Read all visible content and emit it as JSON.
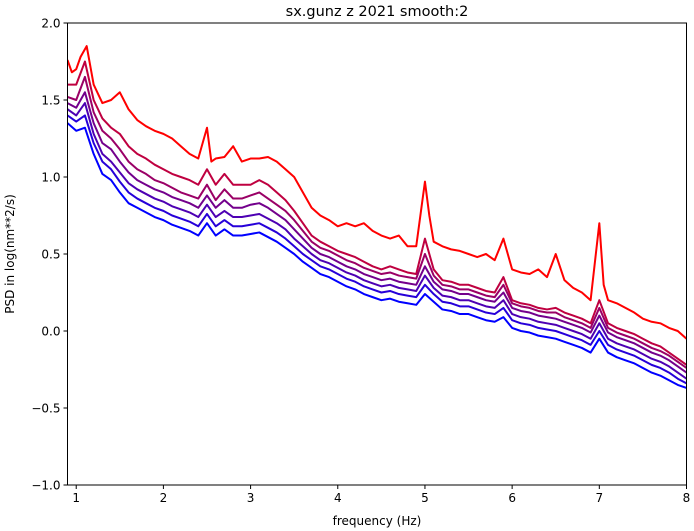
{
  "chart_data": {
    "type": "line",
    "title": "sx.gunz z 2021 smooth:2",
    "xlabel": "frequency (Hz)",
    "ylabel": "PSD in log(nm**2/s)",
    "xlim": [
      0.9,
      8.0
    ],
    "ylim": [
      -1.0,
      2.0
    ],
    "xticks": [
      1,
      2,
      3,
      4,
      5,
      6,
      7,
      8
    ],
    "yticks": [
      -1.0,
      -0.5,
      0.0,
      0.5,
      1.0,
      1.5,
      2.0
    ],
    "xtick_labels": [
      "1",
      "2",
      "3",
      "4",
      "5",
      "6",
      "7",
      "8"
    ],
    "ytick_labels": [
      "−1.0",
      "−0.5",
      "0.0",
      "0.5",
      "1.0",
      "1.5",
      "2.0"
    ],
    "grid": false,
    "legend": "none",
    "series": [
      {
        "color": "#ff0000",
        "x": [
          0.9,
          0.95,
          1.0,
          1.05,
          1.12,
          1.2,
          1.3,
          1.4,
          1.5,
          1.6,
          1.7,
          1.8,
          1.9,
          2.0,
          2.1,
          2.2,
          2.3,
          2.4,
          2.5,
          2.55,
          2.6,
          2.7,
          2.8,
          2.9,
          3.0,
          3.1,
          3.2,
          3.3,
          3.4,
          3.5,
          3.6,
          3.7,
          3.8,
          3.9,
          4.0,
          4.1,
          4.2,
          4.3,
          4.4,
          4.5,
          4.6,
          4.7,
          4.8,
          4.9,
          5.0,
          5.05,
          5.1,
          5.2,
          5.3,
          5.4,
          5.5,
          5.6,
          5.7,
          5.8,
          5.9,
          6.0,
          6.1,
          6.2,
          6.3,
          6.4,
          6.5,
          6.6,
          6.7,
          6.8,
          6.9,
          7.0,
          7.05,
          7.1,
          7.2,
          7.3,
          7.4,
          7.5,
          7.6,
          7.7,
          7.8,
          7.9,
          8.0
        ],
        "y": [
          1.76,
          1.68,
          1.7,
          1.78,
          1.85,
          1.6,
          1.48,
          1.5,
          1.55,
          1.44,
          1.37,
          1.33,
          1.3,
          1.28,
          1.25,
          1.2,
          1.15,
          1.12,
          1.32,
          1.1,
          1.12,
          1.13,
          1.2,
          1.1,
          1.12,
          1.12,
          1.13,
          1.1,
          1.05,
          1.0,
          0.9,
          0.8,
          0.75,
          0.72,
          0.68,
          0.7,
          0.68,
          0.7,
          0.65,
          0.62,
          0.6,
          0.62,
          0.55,
          0.55,
          0.97,
          0.75,
          0.58,
          0.55,
          0.53,
          0.52,
          0.5,
          0.48,
          0.5,
          0.46,
          0.6,
          0.4,
          0.38,
          0.37,
          0.4,
          0.35,
          0.5,
          0.33,
          0.28,
          0.25,
          0.2,
          0.7,
          0.3,
          0.2,
          0.18,
          0.15,
          0.12,
          0.08,
          0.06,
          0.05,
          0.02,
          0.0,
          -0.05
        ]
      },
      {
        "color": "#bf0040",
        "x": [
          0.9,
          1.0,
          1.1,
          1.2,
          1.3,
          1.4,
          1.5,
          1.6,
          1.7,
          1.8,
          1.9,
          2.0,
          2.1,
          2.2,
          2.3,
          2.4,
          2.5,
          2.6,
          2.7,
          2.8,
          2.9,
          3.0,
          3.1,
          3.2,
          3.3,
          3.4,
          3.5,
          3.6,
          3.7,
          3.8,
          3.9,
          4.0,
          4.1,
          4.2,
          4.3,
          4.4,
          4.5,
          4.6,
          4.7,
          4.8,
          4.9,
          5.0,
          5.1,
          5.2,
          5.3,
          5.4,
          5.5,
          5.6,
          5.7,
          5.8,
          5.9,
          6.0,
          6.1,
          6.2,
          6.3,
          6.4,
          6.5,
          6.6,
          6.7,
          6.8,
          6.9,
          7.0,
          7.1,
          7.2,
          7.3,
          7.4,
          7.5,
          7.6,
          7.7,
          7.8,
          7.9,
          8.0
        ],
        "y": [
          1.6,
          1.6,
          1.75,
          1.5,
          1.38,
          1.32,
          1.28,
          1.2,
          1.15,
          1.12,
          1.08,
          1.05,
          1.02,
          1.0,
          0.98,
          0.95,
          1.05,
          0.95,
          1.02,
          0.95,
          0.95,
          0.95,
          0.98,
          0.95,
          0.9,
          0.85,
          0.78,
          0.7,
          0.62,
          0.58,
          0.55,
          0.52,
          0.5,
          0.48,
          0.45,
          0.42,
          0.4,
          0.42,
          0.4,
          0.38,
          0.37,
          0.6,
          0.4,
          0.33,
          0.32,
          0.3,
          0.3,
          0.28,
          0.26,
          0.25,
          0.35,
          0.2,
          0.18,
          0.17,
          0.15,
          0.14,
          0.15,
          0.12,
          0.1,
          0.08,
          0.05,
          0.2,
          0.05,
          0.02,
          0.0,
          -0.02,
          -0.05,
          -0.08,
          -0.1,
          -0.14,
          -0.18,
          -0.22
        ]
      },
      {
        "color": "#9a0066",
        "x": [
          0.9,
          1.0,
          1.1,
          1.2,
          1.3,
          1.4,
          1.5,
          1.6,
          1.7,
          1.8,
          1.9,
          2.0,
          2.1,
          2.2,
          2.3,
          2.4,
          2.5,
          2.6,
          2.7,
          2.8,
          2.9,
          3.0,
          3.1,
          3.2,
          3.3,
          3.4,
          3.5,
          3.6,
          3.7,
          3.8,
          3.9,
          4.0,
          4.1,
          4.2,
          4.3,
          4.4,
          4.5,
          4.6,
          4.7,
          4.8,
          4.9,
          5.0,
          5.1,
          5.2,
          5.3,
          5.4,
          5.5,
          5.6,
          5.7,
          5.8,
          5.9,
          6.0,
          6.1,
          6.2,
          6.3,
          6.4,
          6.5,
          6.6,
          6.7,
          6.8,
          6.9,
          7.0,
          7.1,
          7.2,
          7.3,
          7.4,
          7.5,
          7.6,
          7.7,
          7.8,
          7.9,
          8.0
        ],
        "y": [
          1.52,
          1.5,
          1.65,
          1.42,
          1.3,
          1.25,
          1.18,
          1.1,
          1.05,
          1.02,
          0.98,
          0.96,
          0.93,
          0.9,
          0.88,
          0.86,
          0.95,
          0.85,
          0.92,
          0.86,
          0.86,
          0.88,
          0.9,
          0.86,
          0.82,
          0.78,
          0.72,
          0.65,
          0.58,
          0.54,
          0.52,
          0.49,
          0.46,
          0.44,
          0.41,
          0.39,
          0.37,
          0.38,
          0.36,
          0.35,
          0.34,
          0.5,
          0.36,
          0.3,
          0.29,
          0.27,
          0.27,
          0.25,
          0.23,
          0.22,
          0.3,
          0.18,
          0.16,
          0.15,
          0.13,
          0.12,
          0.12,
          0.09,
          0.07,
          0.05,
          0.02,
          0.15,
          0.02,
          -0.01,
          -0.03,
          -0.05,
          -0.08,
          -0.11,
          -0.13,
          -0.16,
          -0.2,
          -0.24
        ]
      },
      {
        "color": "#73008c",
        "x": [
          0.9,
          1.0,
          1.1,
          1.2,
          1.3,
          1.4,
          1.5,
          1.6,
          1.7,
          1.8,
          1.9,
          2.0,
          2.1,
          2.2,
          2.3,
          2.4,
          2.5,
          2.6,
          2.7,
          2.8,
          2.9,
          3.0,
          3.1,
          3.2,
          3.3,
          3.4,
          3.5,
          3.6,
          3.7,
          3.8,
          3.9,
          4.0,
          4.1,
          4.2,
          4.3,
          4.4,
          4.5,
          4.6,
          4.7,
          4.8,
          4.9,
          5.0,
          5.1,
          5.2,
          5.3,
          5.4,
          5.5,
          5.6,
          5.7,
          5.8,
          5.9,
          6.0,
          6.1,
          6.2,
          6.3,
          6.4,
          6.5,
          6.6,
          6.7,
          6.8,
          6.9,
          7.0,
          7.1,
          7.2,
          7.3,
          7.4,
          7.5,
          7.6,
          7.7,
          7.8,
          7.9,
          8.0
        ],
        "y": [
          1.48,
          1.45,
          1.55,
          1.35,
          1.22,
          1.18,
          1.1,
          1.03,
          0.98,
          0.95,
          0.92,
          0.9,
          0.87,
          0.85,
          0.83,
          0.8,
          0.88,
          0.8,
          0.85,
          0.8,
          0.8,
          0.82,
          0.83,
          0.8,
          0.76,
          0.72,
          0.66,
          0.6,
          0.54,
          0.5,
          0.48,
          0.45,
          0.42,
          0.4,
          0.37,
          0.35,
          0.33,
          0.34,
          0.32,
          0.31,
          0.3,
          0.42,
          0.32,
          0.27,
          0.26,
          0.24,
          0.24,
          0.22,
          0.2,
          0.19,
          0.25,
          0.15,
          0.13,
          0.12,
          0.1,
          0.09,
          0.08,
          0.06,
          0.04,
          0.02,
          -0.01,
          0.1,
          -0.01,
          -0.04,
          -0.06,
          -0.08,
          -0.11,
          -0.14,
          -0.16,
          -0.19,
          -0.23,
          -0.27
        ]
      },
      {
        "color": "#4d00b3",
        "x": [
          0.9,
          1.0,
          1.1,
          1.2,
          1.3,
          1.4,
          1.5,
          1.6,
          1.7,
          1.8,
          1.9,
          2.0,
          2.1,
          2.2,
          2.3,
          2.4,
          2.5,
          2.6,
          2.7,
          2.8,
          2.9,
          3.0,
          3.1,
          3.2,
          3.3,
          3.4,
          3.5,
          3.6,
          3.7,
          3.8,
          3.9,
          4.0,
          4.1,
          4.2,
          4.3,
          4.4,
          4.5,
          4.6,
          4.7,
          4.8,
          4.9,
          5.0,
          5.1,
          5.2,
          5.3,
          5.4,
          5.5,
          5.6,
          5.7,
          5.8,
          5.9,
          6.0,
          6.1,
          6.2,
          6.3,
          6.4,
          6.5,
          6.6,
          6.7,
          6.8,
          6.9,
          7.0,
          7.1,
          7.2,
          7.3,
          7.4,
          7.5,
          7.6,
          7.7,
          7.8,
          7.9,
          8.0
        ],
        "y": [
          1.44,
          1.4,
          1.48,
          1.28,
          1.15,
          1.1,
          1.03,
          0.96,
          0.92,
          0.89,
          0.86,
          0.84,
          0.81,
          0.79,
          0.77,
          0.74,
          0.82,
          0.74,
          0.78,
          0.74,
          0.74,
          0.75,
          0.76,
          0.73,
          0.7,
          0.66,
          0.6,
          0.55,
          0.5,
          0.46,
          0.44,
          0.41,
          0.38,
          0.36,
          0.33,
          0.31,
          0.29,
          0.3,
          0.28,
          0.27,
          0.26,
          0.36,
          0.28,
          0.23,
          0.22,
          0.2,
          0.2,
          0.18,
          0.16,
          0.15,
          0.2,
          0.11,
          0.09,
          0.08,
          0.06,
          0.05,
          0.04,
          0.02,
          0.0,
          -0.02,
          -0.05,
          0.05,
          -0.05,
          -0.08,
          -0.1,
          -0.12,
          -0.15,
          -0.18,
          -0.2,
          -0.23,
          -0.27,
          -0.31
        ]
      },
      {
        "color": "#2600d9",
        "x": [
          0.9,
          1.0,
          1.1,
          1.2,
          1.3,
          1.4,
          1.5,
          1.6,
          1.7,
          1.8,
          1.9,
          2.0,
          2.1,
          2.2,
          2.3,
          2.4,
          2.5,
          2.6,
          2.7,
          2.8,
          2.9,
          3.0,
          3.1,
          3.2,
          3.3,
          3.4,
          3.5,
          3.6,
          3.7,
          3.8,
          3.9,
          4.0,
          4.1,
          4.2,
          4.3,
          4.4,
          4.5,
          4.6,
          4.7,
          4.8,
          4.9,
          5.0,
          5.1,
          5.2,
          5.3,
          5.4,
          5.5,
          5.6,
          5.7,
          5.8,
          5.9,
          6.0,
          6.1,
          6.2,
          6.3,
          6.4,
          6.5,
          6.6,
          6.7,
          6.8,
          6.9,
          7.0,
          7.1,
          7.2,
          7.3,
          7.4,
          7.5,
          7.6,
          7.7,
          7.8,
          7.9,
          8.0
        ],
        "y": [
          1.4,
          1.36,
          1.4,
          1.22,
          1.1,
          1.05,
          0.97,
          0.9,
          0.86,
          0.83,
          0.8,
          0.78,
          0.75,
          0.73,
          0.71,
          0.68,
          0.76,
          0.68,
          0.72,
          0.68,
          0.68,
          0.69,
          0.7,
          0.67,
          0.64,
          0.6,
          0.55,
          0.5,
          0.46,
          0.42,
          0.4,
          0.37,
          0.34,
          0.32,
          0.29,
          0.27,
          0.25,
          0.26,
          0.24,
          0.23,
          0.22,
          0.3,
          0.24,
          0.19,
          0.18,
          0.16,
          0.16,
          0.14,
          0.12,
          0.11,
          0.15,
          0.07,
          0.05,
          0.04,
          0.02,
          0.01,
          0.0,
          -0.02,
          -0.04,
          -0.06,
          -0.09,
          0.0,
          -0.09,
          -0.12,
          -0.14,
          -0.16,
          -0.19,
          -0.22,
          -0.24,
          -0.27,
          -0.31,
          -0.34
        ]
      },
      {
        "color": "#0000ff",
        "x": [
          0.9,
          1.0,
          1.1,
          1.2,
          1.3,
          1.4,
          1.5,
          1.6,
          1.7,
          1.8,
          1.9,
          2.0,
          2.1,
          2.2,
          2.3,
          2.4,
          2.5,
          2.6,
          2.7,
          2.8,
          2.9,
          3.0,
          3.1,
          3.2,
          3.3,
          3.4,
          3.5,
          3.6,
          3.7,
          3.8,
          3.9,
          4.0,
          4.1,
          4.2,
          4.3,
          4.4,
          4.5,
          4.6,
          4.7,
          4.8,
          4.9,
          5.0,
          5.1,
          5.2,
          5.3,
          5.4,
          5.5,
          5.6,
          5.7,
          5.8,
          5.9,
          6.0,
          6.1,
          6.2,
          6.3,
          6.4,
          6.5,
          6.6,
          6.7,
          6.8,
          6.9,
          7.0,
          7.1,
          7.2,
          7.3,
          7.4,
          7.5,
          7.6,
          7.7,
          7.8,
          7.9,
          8.0
        ],
        "y": [
          1.35,
          1.3,
          1.32,
          1.15,
          1.02,
          0.98,
          0.9,
          0.83,
          0.8,
          0.77,
          0.74,
          0.72,
          0.69,
          0.67,
          0.65,
          0.62,
          0.7,
          0.62,
          0.66,
          0.62,
          0.62,
          0.63,
          0.64,
          0.61,
          0.58,
          0.54,
          0.5,
          0.45,
          0.41,
          0.37,
          0.35,
          0.32,
          0.29,
          0.27,
          0.24,
          0.22,
          0.2,
          0.21,
          0.19,
          0.18,
          0.17,
          0.24,
          0.19,
          0.14,
          0.13,
          0.11,
          0.11,
          0.09,
          0.07,
          0.06,
          0.09,
          0.02,
          0.0,
          -0.01,
          -0.03,
          -0.04,
          -0.05,
          -0.07,
          -0.09,
          -0.11,
          -0.14,
          -0.05,
          -0.14,
          -0.17,
          -0.19,
          -0.21,
          -0.24,
          -0.27,
          -0.29,
          -0.32,
          -0.35,
          -0.37
        ]
      }
    ]
  }
}
